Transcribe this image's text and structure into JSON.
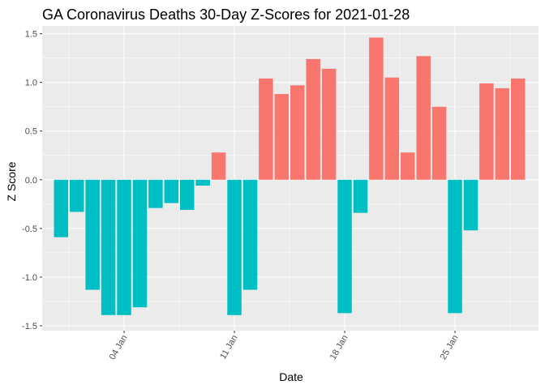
{
  "chart_data": {
    "type": "bar",
    "title": "GA Coronavirus Deaths 30-Day Z-Scores for 2021-01-28",
    "xlabel": "Date",
    "ylabel": "Z Score",
    "ylim": [
      -1.55,
      1.58
    ],
    "yticks": [
      -1.5,
      -1.0,
      -0.5,
      0.0,
      0.5,
      1.0,
      1.5
    ],
    "ytick_labels": [
      "-1.5",
      "-1.0",
      "-0.5",
      "0.0",
      "0.5",
      "1.0",
      "1.5"
    ],
    "xticks": [
      {
        "day": 4,
        "label": "04 Jan"
      },
      {
        "day": 11,
        "label": "11 Jan"
      },
      {
        "day": 18,
        "label": "18 Jan"
      },
      {
        "day": 25,
        "label": "25 Jan"
      }
    ],
    "xlim_days": [
      -1.2,
      30.3
    ],
    "positive_color": "#f8766d",
    "negative_color": "#00bfc4",
    "panel_color": "#ebebeb",
    "grid_color": "#ffffff",
    "bars": [
      {
        "day": -0.0,
        "value": -0.59
      },
      {
        "day": 1.0,
        "value": -0.33
      },
      {
        "day": 2.0,
        "value": -1.13
      },
      {
        "day": 3.0,
        "value": -1.39
      },
      {
        "day": 4.0,
        "value": -1.39
      },
      {
        "day": 5.0,
        "value": -1.31
      },
      {
        "day": 6.0,
        "value": -0.29
      },
      {
        "day": 7.0,
        "value": -0.24
      },
      {
        "day": 8.0,
        "value": -0.31
      },
      {
        "day": 9.0,
        "value": -0.06
      },
      {
        "day": 10.0,
        "value": 0.28
      },
      {
        "day": 11.0,
        "value": -1.39
      },
      {
        "day": 12.0,
        "value": -1.13
      },
      {
        "day": 13.0,
        "value": 1.04
      },
      {
        "day": 14.0,
        "value": 0.88
      },
      {
        "day": 15.0,
        "value": 0.97
      },
      {
        "day": 16.0,
        "value": 1.24
      },
      {
        "day": 17.0,
        "value": 1.14
      },
      {
        "day": 18.0,
        "value": -1.37
      },
      {
        "day": 19.0,
        "value": -0.34
      },
      {
        "day": 20.0,
        "value": 1.46
      },
      {
        "day": 21.0,
        "value": 1.05
      },
      {
        "day": 22.0,
        "value": 0.28
      },
      {
        "day": 23.0,
        "value": 1.27
      },
      {
        "day": 24.0,
        "value": 0.75
      },
      {
        "day": 25.0,
        "value": -1.37
      },
      {
        "day": 26.0,
        "value": -0.52
      },
      {
        "day": 27.0,
        "value": 0.99
      },
      {
        "day": 28.0,
        "value": 0.94
      },
      {
        "day": 29.0,
        "value": 1.04
      }
    ]
  }
}
